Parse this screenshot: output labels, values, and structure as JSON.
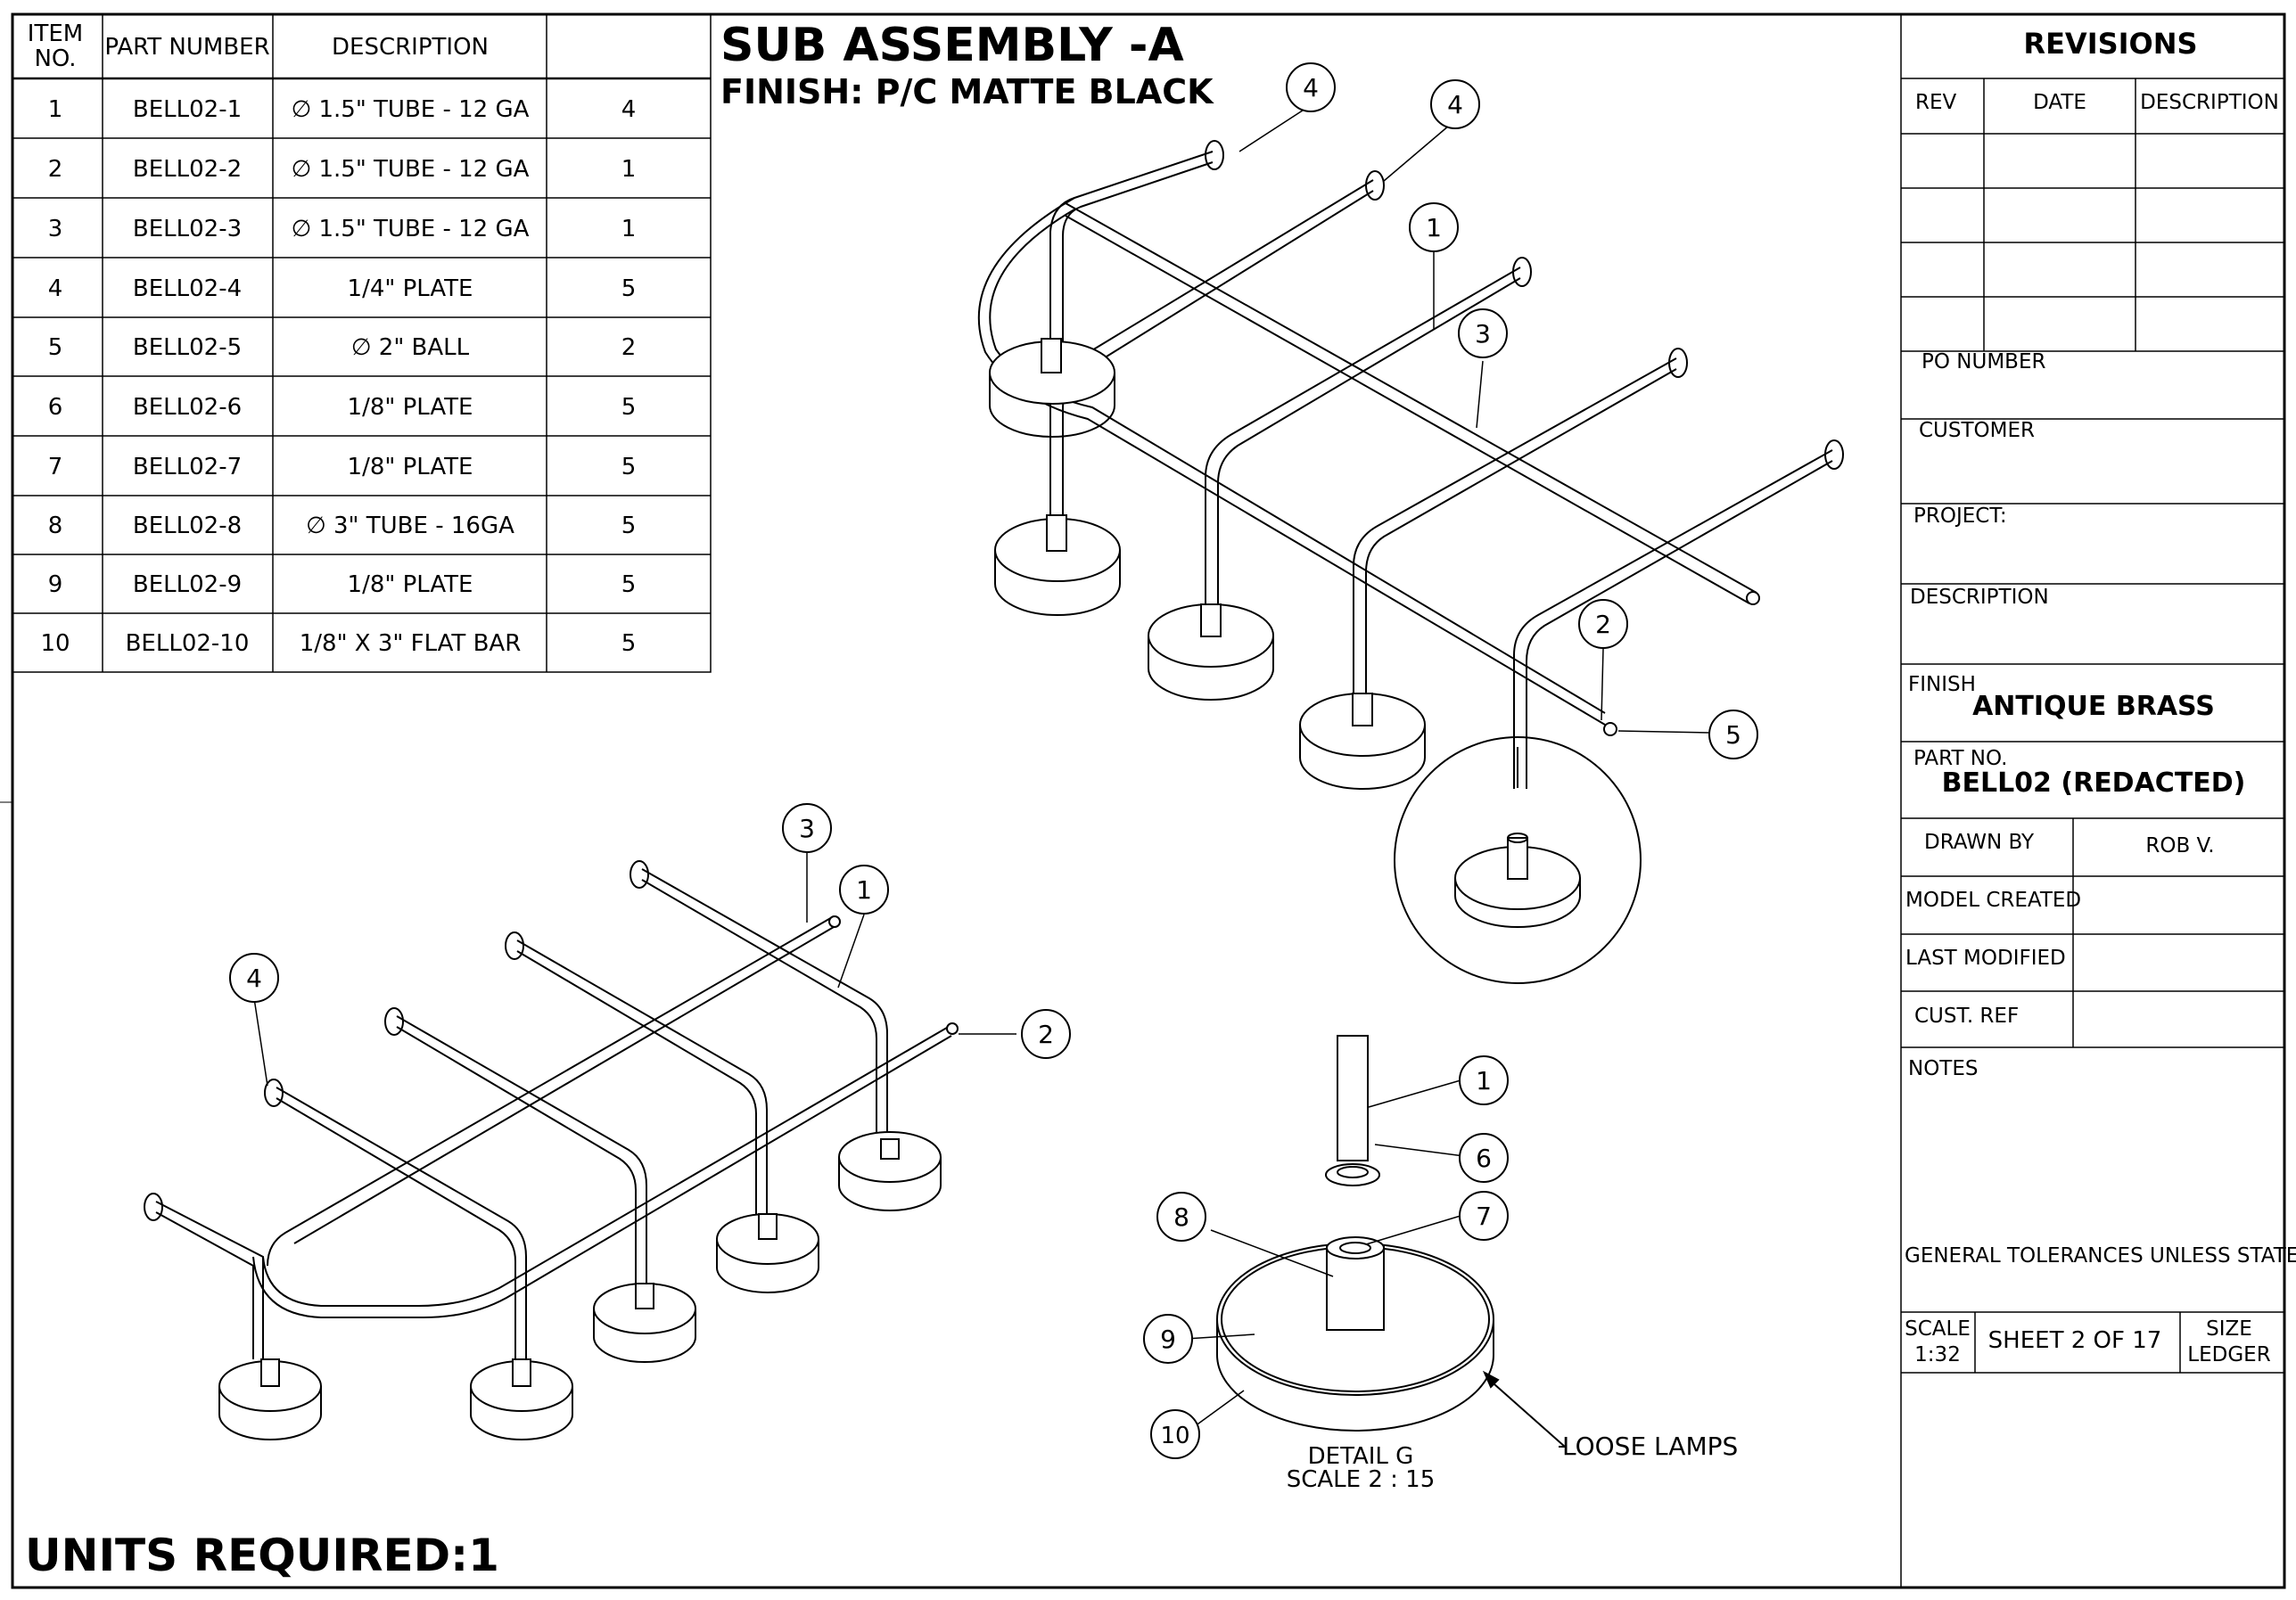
{
  "bom": {
    "headers": [
      "ITEM",
      "NO.",
      "PART NUMBER",
      "DESCRIPTION",
      ""
    ],
    "rows": [
      {
        "item": "1",
        "part": "BELL02-1",
        "desc": "∅ 1.5\" TUBE - 12 GA",
        "qty": "4"
      },
      {
        "item": "2",
        "part": "BELL02-2",
        "desc": "∅ 1.5\" TUBE - 12 GA",
        "qty": "1"
      },
      {
        "item": "3",
        "part": "BELL02-3",
        "desc": "∅ 1.5\" TUBE - 12 GA",
        "qty": "1"
      },
      {
        "item": "4",
        "part": "BELL02-4",
        "desc": "1/4\" PLATE",
        "qty": "5"
      },
      {
        "item": "5",
        "part": "BELL02-5",
        "desc": "∅ 2\" BALL",
        "qty": "2"
      },
      {
        "item": "6",
        "part": "BELL02-6",
        "desc": "1/8\" PLATE",
        "qty": "5"
      },
      {
        "item": "7",
        "part": "BELL02-7",
        "desc": "1/8\" PLATE",
        "qty": "5"
      },
      {
        "item": "8",
        "part": "BELL02-8",
        "desc": "∅ 3\" TUBE - 16GA",
        "qty": "5"
      },
      {
        "item": "9",
        "part": "BELL02-9",
        "desc": "1/8\" PLATE",
        "qty": "5"
      },
      {
        "item": "10",
        "part": "BELL02-10",
        "desc": "1/8\" X  3\" FLAT BAR",
        "qty": "5"
      }
    ]
  },
  "title": {
    "main": "SUB ASSEMBLY -A",
    "finish": "FINISH: P/C MATTE BLACK"
  },
  "units_required": "UNITS REQUIRED:1",
  "detail": {
    "name": "DETAIL G",
    "scale": "SCALE 2 : 15",
    "note": "LOOSE LAMPS"
  },
  "balloons": {
    "top": [
      "4",
      "4",
      "1",
      "3",
      "2",
      "5"
    ],
    "bottom": [
      "3",
      "1",
      "4",
      "2"
    ],
    "detail": [
      "1",
      "6",
      "8",
      "7",
      "9",
      "10"
    ]
  },
  "title_block": {
    "revisions": "REVISIONS",
    "rev_headers": [
      "REV",
      "DATE",
      "DESCRIPTION"
    ],
    "po_number": "PO NUMBER",
    "customer": "CUSTOMER",
    "project": "PROJECT:",
    "description": "DESCRIPTION",
    "finish_label": "FINISH",
    "finish_value": "ANTIQUE BRASS",
    "part_no_label": "PART NO.",
    "part_no_value": "BELL02 (REDACTED)",
    "drawn_by_label": "DRAWN BY",
    "drawn_by_value": "ROB V.",
    "model_created": "MODEL CREATED",
    "last_modified": "LAST MODIFIED",
    "cust_ref": "CUST. REF",
    "notes": "NOTES",
    "tolerances": "GENERAL TOLERANCES UNLESS STATED",
    "scale_label": "SCALE",
    "scale_value": "1:32",
    "sheet": "SHEET  2 OF  17",
    "size_label": "SIZE",
    "size_value": "LEDGER"
  }
}
